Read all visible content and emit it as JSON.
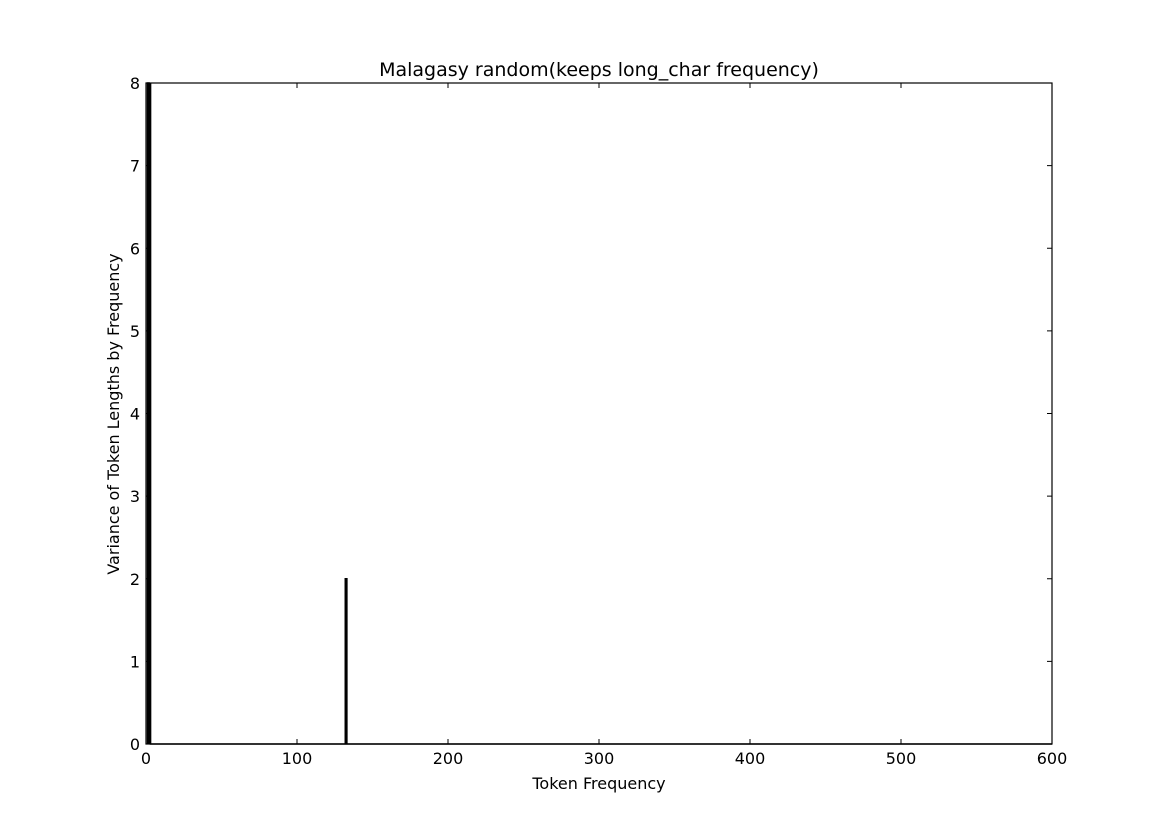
{
  "chart_data": {
    "type": "line",
    "title": "Malagasy random(keeps long_char frequency)",
    "xlabel": "Token Frequency",
    "ylabel": "Variance of Token Lengths by Frequency",
    "xlim": [
      0,
      600
    ],
    "ylim": [
      0,
      8
    ],
    "xticks": [
      0,
      100,
      200,
      300,
      400,
      500,
      600
    ],
    "yticks": [
      0,
      1,
      2,
      3,
      4,
      5,
      6,
      7,
      8
    ],
    "xtick_labels": [
      "0",
      "100",
      "200",
      "300",
      "400",
      "500",
      "600"
    ],
    "ytick_labels": [
      "0",
      "1",
      "2",
      "3",
      "4",
      "5",
      "6",
      "7",
      "8"
    ],
    "grid": false,
    "legend": "none",
    "line_color": "#000000",
    "series": [
      {
        "x": [
          1,
          1,
          2,
          2,
          3,
          3,
          4,
          132,
          132,
          133,
          133,
          134,
          600
        ],
        "y": [
          0,
          8,
          8,
          0,
          8,
          0,
          0,
          0,
          2,
          2,
          0,
          0,
          0
        ]
      }
    ]
  }
}
